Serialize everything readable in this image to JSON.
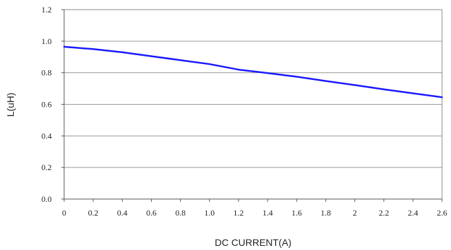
{
  "chart_data": {
    "type": "line",
    "title": "",
    "xlabel": "DC CURRENT(A)",
    "ylabel": "L(uH)",
    "xlim": [
      0,
      2.6
    ],
    "ylim": [
      0,
      1.2
    ],
    "x_ticks": [
      "0",
      "0.2",
      "0.4",
      "0.6",
      "0.8",
      "1.0",
      "1.2",
      "1.4",
      "1.6",
      "1.8",
      "2",
      "2.2",
      "2.4",
      "2.6"
    ],
    "x_tick_values": [
      0,
      0.2,
      0.4,
      0.6,
      0.8,
      1.0,
      1.2,
      1.4,
      1.6,
      1.8,
      2.0,
      2.2,
      2.4,
      2.6
    ],
    "y_ticks": [
      "0.0",
      "0.2",
      "0.4",
      "0.6",
      "0.8",
      "1.0",
      "1.2"
    ],
    "y_tick_values": [
      0,
      0.2,
      0.4,
      0.6,
      0.8,
      1.0,
      1.2
    ],
    "grid": "horizontal",
    "legend": "none",
    "series": [
      {
        "color": "#1a1aff",
        "x": [
          0,
          0.2,
          0.4,
          0.6,
          0.8,
          1.0,
          1.2,
          1.4,
          1.6,
          1.8,
          2.0,
          2.2,
          2.4,
          2.6
        ],
        "y": [
          0.965,
          0.95,
          0.93,
          0.905,
          0.88,
          0.855,
          0.82,
          0.798,
          0.775,
          0.748,
          0.722,
          0.695,
          0.67,
          0.645
        ]
      }
    ]
  }
}
